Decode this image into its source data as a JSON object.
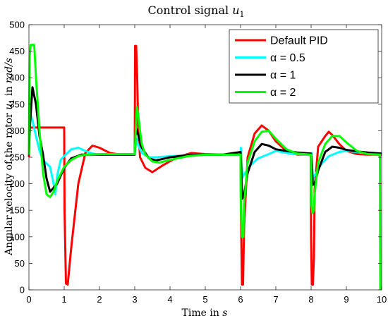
{
  "chart_data": {
    "type": "line",
    "title": "Control signal u₁",
    "xlabel": "Time in s",
    "ylabel": "Angular velocity of the rotor u₁ in rad/s",
    "xlim": [
      0,
      10
    ],
    "ylim": [
      0,
      500
    ],
    "xticks": [
      "0",
      "1",
      "2",
      "3",
      "4",
      "5",
      "6",
      "7",
      "8",
      "9",
      "10"
    ],
    "yticks": [
      "0",
      "50",
      "100",
      "150",
      "200",
      "250",
      "300",
      "350",
      "400",
      "450",
      "500"
    ],
    "grid": false,
    "legend_position": "top-right",
    "series": [
      {
        "name": "Default PID",
        "color": "#ff0000",
        "x": [
          0,
          0.01,
          0.02,
          1.0,
          1.01,
          1.05,
          1.1,
          1.2,
          1.4,
          1.6,
          1.8,
          2.0,
          2.3,
          2.6,
          3.0,
          3.01,
          3.04,
          3.07,
          3.1,
          3.15,
          3.3,
          3.5,
          3.8,
          4.2,
          4.6,
          5.0,
          5.5,
          6.0,
          6.01,
          6.04,
          6.07,
          6.1,
          6.2,
          6.4,
          6.6,
          6.8,
          7.0,
          7.3,
          7.6,
          7.99,
          8.0,
          8.02,
          8.05,
          8.08,
          8.1,
          8.2,
          8.4,
          8.5,
          8.6,
          8.8,
          9.0,
          9.3,
          9.6,
          9.99,
          10.0
        ],
        "y": [
          250,
          306,
          306,
          306,
          150,
          12,
          10,
          80,
          200,
          258,
          272,
          268,
          258,
          255,
          255,
          460,
          460,
          400,
          300,
          250,
          230,
          222,
          235,
          250,
          258,
          256,
          255,
          255,
          150,
          10,
          10,
          120,
          250,
          295,
          310,
          300,
          280,
          262,
          255,
          255,
          100,
          10,
          10,
          60,
          190,
          270,
          290,
          298,
          292,
          275,
          262,
          256,
          255,
          255,
          255
        ]
      },
      {
        "name": "α = 0.5",
        "color": "#00ffff",
        "x": [
          0,
          0.05,
          0.1,
          0.2,
          0.3,
          0.4,
          0.5,
          0.6,
          0.7,
          0.75,
          0.8,
          0.9,
          1.0,
          1.2,
          1.4,
          1.6,
          1.8,
          2.0,
          2.5,
          3.0,
          3.05,
          3.1,
          3.2,
          3.4,
          3.6,
          4.0,
          4.5,
          5.0,
          5.5,
          6.0,
          6.01,
          6.05,
          6.1,
          6.3,
          6.5,
          6.8,
          7.0,
          7.5,
          8.0,
          8.01,
          8.05,
          8.1,
          8.3,
          8.5,
          8.8,
          9.0,
          9.5,
          10.0
        ],
        "y": [
          280,
          330,
          320,
          290,
          262,
          245,
          238,
          232,
          200,
          180,
          215,
          245,
          252,
          265,
          268,
          262,
          257,
          255,
          255,
          255,
          285,
          272,
          258,
          250,
          250,
          252,
          254,
          255,
          255,
          255,
          268,
          212,
          218,
          236,
          248,
          256,
          262,
          256,
          255,
          258,
          210,
          216,
          238,
          252,
          260,
          262,
          258,
          256
        ]
      },
      {
        "name": "α = 1",
        "color": "#000000",
        "x": [
          0,
          0.02,
          0.1,
          0.2,
          0.3,
          0.4,
          0.5,
          0.6,
          0.8,
          1.0,
          1.2,
          1.5,
          2.0,
          2.5,
          3.0,
          3.02,
          3.05,
          3.1,
          3.2,
          3.4,
          3.6,
          3.8,
          4.0,
          4.5,
          5.0,
          5.5,
          6.0,
          6.01,
          6.05,
          6.1,
          6.2,
          6.4,
          6.6,
          6.8,
          7.0,
          7.3,
          7.6,
          8.0,
          8.01,
          8.05,
          8.1,
          8.2,
          8.4,
          8.6,
          8.8,
          9.0,
          9.3,
          9.6,
          10.0
        ],
        "y": [
          255,
          300,
          382,
          350,
          290,
          255,
          210,
          185,
          200,
          230,
          248,
          255,
          255,
          255,
          255,
          290,
          303,
          292,
          268,
          248,
          244,
          247,
          250,
          254,
          255,
          255,
          260,
          245,
          172,
          180,
          220,
          260,
          275,
          272,
          265,
          262,
          259,
          257,
          250,
          198,
          200,
          225,
          260,
          270,
          268,
          264,
          261,
          259,
          257
        ]
      },
      {
        "name": "α = 2",
        "color": "#00ff00",
        "x": [
          0,
          0.02,
          0.05,
          0.15,
          0.2,
          0.3,
          0.4,
          0.5,
          0.6,
          0.7,
          0.8,
          1.0,
          1.2,
          1.4,
          1.6,
          2.0,
          2.5,
          3.0,
          3.02,
          3.06,
          3.1,
          3.15,
          3.2,
          3.3,
          3.5,
          3.7,
          4.0,
          4.5,
          5.0,
          5.5,
          6.0,
          6.01,
          6.04,
          6.08,
          6.1,
          6.2,
          6.4,
          6.6,
          6.8,
          7.0,
          7.3,
          7.6,
          8.0,
          8.01,
          8.04,
          8.08,
          8.1,
          8.2,
          8.4,
          8.6,
          8.8,
          9.0,
          9.3,
          9.6,
          9.95,
          9.96,
          10.0
        ],
        "y": [
          255,
          440,
          462,
          462,
          400,
          300,
          220,
          180,
          175,
          185,
          205,
          232,
          245,
          252,
          255,
          256,
          256,
          256,
          290,
          345,
          330,
          300,
          275,
          255,
          242,
          240,
          245,
          252,
          255,
          255,
          255,
          150,
          100,
          100,
          160,
          240,
          280,
          298,
          300,
          285,
          265,
          257,
          255,
          160,
          145,
          150,
          180,
          240,
          275,
          290,
          290,
          278,
          262,
          256,
          255,
          2,
          2
        ]
      }
    ]
  }
}
